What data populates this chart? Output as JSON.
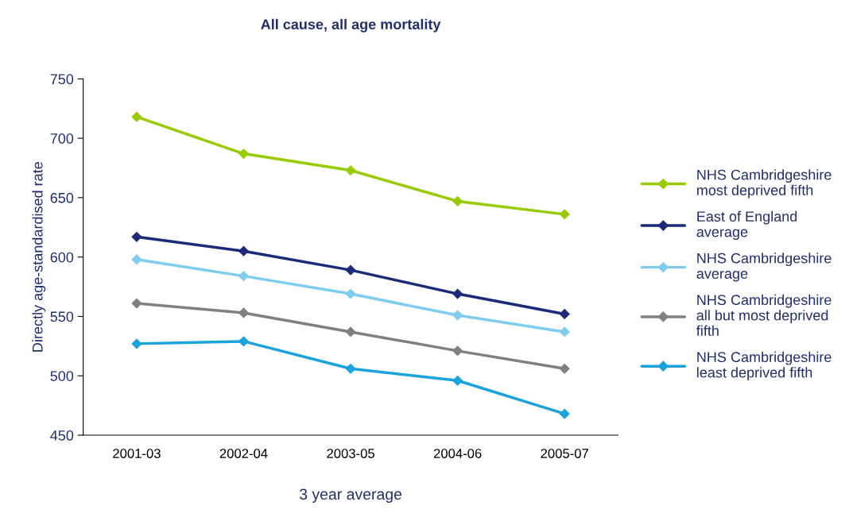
{
  "chart_data": {
    "type": "line",
    "title": "All cause, all age mortality",
    "xlabel": "3 year average",
    "ylabel": "Directly age-standardised rate",
    "categories": [
      "2001-03",
      "2002-04",
      "2003-05",
      "2004-06",
      "2005-07"
    ],
    "series": [
      {
        "name": "NHS Cambridgeshire\nmost deprived fifth",
        "color": "#99cc00",
        "values": [
          718,
          687,
          673,
          647,
          636
        ]
      },
      {
        "name": "East of England\naverage",
        "color": "#1c2a7a",
        "values": [
          617,
          605,
          589,
          569,
          552
        ]
      },
      {
        "name": "NHS Cambridgeshire\naverage",
        "color": "#7fcdee",
        "values": [
          598,
          584,
          569,
          551,
          537
        ]
      },
      {
        "name": "NHS Cambridgeshire\nall but most deprived\nfifth",
        "color": "#808080",
        "values": [
          561,
          553,
          537,
          521,
          506
        ]
      },
      {
        "name": "NHS Cambridgeshire\nleast deprived fifth",
        "color": "#1aa3dc",
        "values": [
          527,
          529,
          506,
          496,
          468
        ]
      }
    ],
    "ylim": [
      450,
      750
    ],
    "yticks": [
      450,
      500,
      550,
      600,
      650,
      700,
      750
    ],
    "grid": false,
    "legend": "right",
    "marker": "diamond",
    "line_style": "solid"
  }
}
